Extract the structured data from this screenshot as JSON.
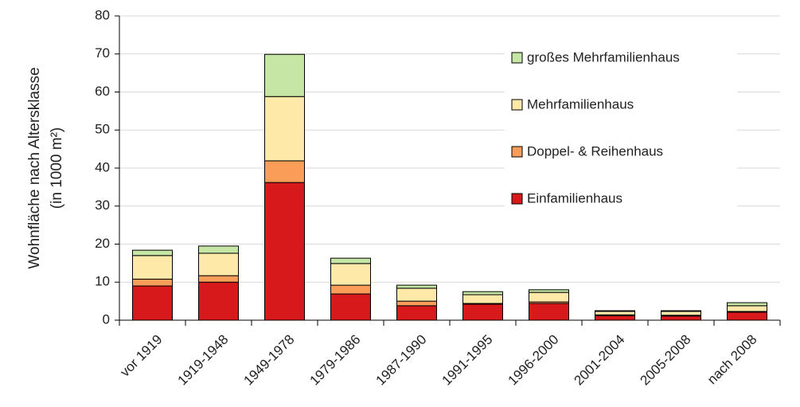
{
  "chart_data": {
    "type": "stacked_bar",
    "y_label": [
      "Wohnfläche nach Altersklasse",
      "(in 1000 m²)"
    ],
    "categories": [
      "vor 1919",
      "1919-1948",
      "1949-1978",
      "1979-1986",
      "1987-1990",
      "1991-1995",
      "1996-2000",
      "2001-2004",
      "2005-2008",
      "nach 2008"
    ],
    "series": [
      {
        "name": "Einfamilienhaus",
        "color": "#d7191c",
        "values": [
          9,
          10,
          36.2,
          6.9,
          3.8,
          4.2,
          4.4,
          1.2,
          1.1,
          2.1
        ]
      },
      {
        "name": "Doppel- & Reihenhaus",
        "color": "#f99d59",
        "values": [
          1.8,
          1.7,
          5.7,
          2.3,
          1.2,
          0.2,
          0.4,
          0.2,
          0.2,
          0.2
        ]
      },
      {
        "name": "Mehrfamilienhaus",
        "color": "#fee9a9",
        "values": [
          6.2,
          5.9,
          16.9,
          5.7,
          3.4,
          2.3,
          2.5,
          0.9,
          1,
          1.5
        ]
      },
      {
        "name": "großes Mehrfamilienhaus",
        "color": "#c5e6a4",
        "values": [
          1.4,
          1.9,
          11.1,
          1.4,
          0.8,
          0.8,
          0.7,
          0.2,
          0.2,
          0.8
        ]
      }
    ],
    "ylim": [
      0,
      80
    ],
    "yticks": [
      0,
      10,
      20,
      30,
      40,
      50,
      60,
      70,
      80
    ],
    "grid": true
  }
}
